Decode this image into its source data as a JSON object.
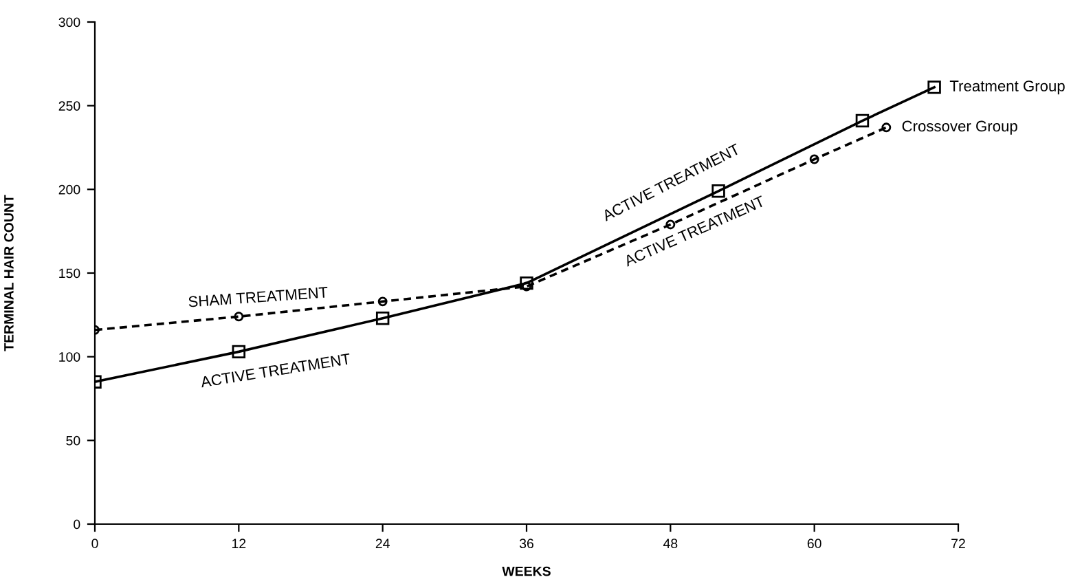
{
  "chart_data": {
    "type": "line",
    "xlabel": "WEEKS",
    "ylabel": "TERMINAL HAIR COUNT",
    "xlim": [
      0,
      72
    ],
    "xticks": [
      0,
      12,
      24,
      36,
      48,
      60,
      72
    ],
    "ylim": [
      0,
      300
    ],
    "yticks": [
      0,
      50,
      100,
      150,
      200,
      250,
      300
    ],
    "grid": false,
    "legend": false,
    "series": [
      {
        "name": "Treatment Group",
        "color": "#000000",
        "marker": "square",
        "line_style": "solid",
        "x": [
          0,
          12,
          24,
          36,
          52,
          64,
          70
        ],
        "values": [
          85,
          103,
          123,
          144,
          199,
          241,
          261
        ]
      },
      {
        "name": "Crossover Group",
        "color": "#000000",
        "marker": "circle",
        "line_style": "dashed",
        "x": [
          0,
          12,
          24,
          36,
          48,
          60,
          66
        ],
        "values": [
          116,
          124,
          133,
          142,
          179,
          218,
          237
        ]
      }
    ],
    "annotations": [
      "SHAM TREATMENT",
      "ACTIVE TREATMENT",
      "ACTIVE TREATMENT",
      "ACTIVE TREATMENT"
    ]
  }
}
